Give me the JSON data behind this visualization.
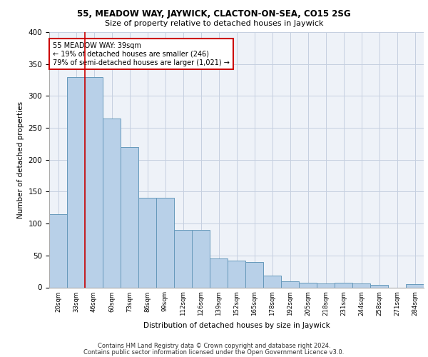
{
  "title1": "55, MEADOW WAY, JAYWICK, CLACTON-ON-SEA, CO15 2SG",
  "title2": "Size of property relative to detached houses in Jaywick",
  "xlabel": "Distribution of detached houses by size in Jaywick",
  "ylabel": "Number of detached properties",
  "categories": [
    "20sqm",
    "33sqm",
    "46sqm",
    "60sqm",
    "73sqm",
    "86sqm",
    "99sqm",
    "112sqm",
    "126sqm",
    "139sqm",
    "152sqm",
    "165sqm",
    "178sqm",
    "192sqm",
    "205sqm",
    "218sqm",
    "231sqm",
    "244sqm",
    "258sqm",
    "271sqm",
    "284sqm"
  ],
  "values": [
    115,
    330,
    330,
    265,
    220,
    140,
    140,
    90,
    90,
    45,
    42,
    40,
    19,
    9,
    7,
    6,
    7,
    6,
    4,
    0,
    5
  ],
  "bar_color": "#b8d0e8",
  "bar_edge_color": "#6699bb",
  "vline_x": 1.5,
  "vline_color": "#cc0000",
  "annotation_text": "55 MEADOW WAY: 39sqm\n← 19% of detached houses are smaller (246)\n79% of semi-detached houses are larger (1,021) →",
  "annotation_box_color": "#ffffff",
  "annotation_box_edge": "#cc0000",
  "ylim": [
    0,
    400
  ],
  "yticks": [
    0,
    50,
    100,
    150,
    200,
    250,
    300,
    350,
    400
  ],
  "footer1": "Contains HM Land Registry data © Crown copyright and database right 2024.",
  "footer2": "Contains public sector information licensed under the Open Government Licence v3.0.",
  "bg_color": "#eef2f8"
}
